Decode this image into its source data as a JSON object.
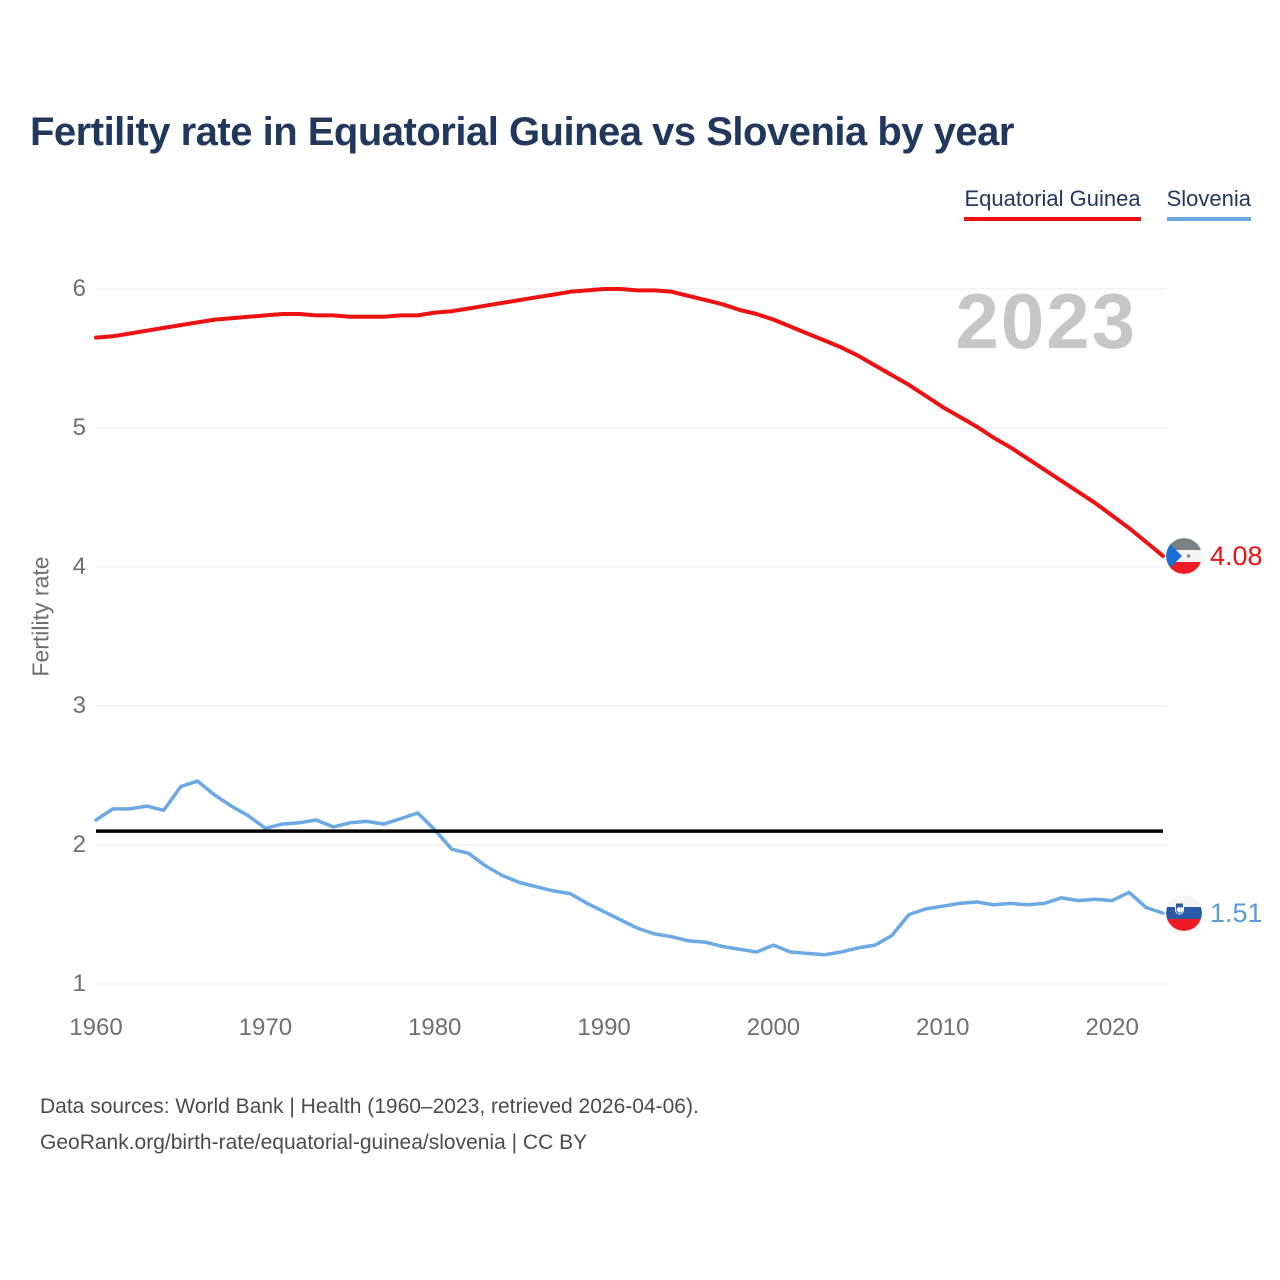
{
  "title": "Fertility rate in Equatorial Guinea vs Slovenia by year",
  "legend": {
    "items": [
      {
        "label": "Equatorial Guinea",
        "color": "#ee1111"
      },
      {
        "label": "Slovenia",
        "color": "#6ca9e4"
      }
    ]
  },
  "watermark": "2023",
  "end_labels": [
    {
      "series": "Equatorial Guinea",
      "value": "4.08",
      "color": "#ee1111",
      "flag": "equatorial-guinea"
    },
    {
      "series": "Slovenia",
      "value": "1.51",
      "color": "#5b9bd9",
      "flag": "slovenia"
    }
  ],
  "footer": {
    "line1": "Data sources: World Bank | Health (1960–2023, retrieved 2026-04-06).",
    "line2": "GeoRank.org/birth-rate/equatorial-guinea/slovenia | CC BY"
  },
  "chart_data": {
    "type": "line",
    "title": "Fertility rate in Equatorial Guinea vs Slovenia by year",
    "xlabel": "",
    "ylabel": "Fertility rate",
    "ylim": [
      1,
      6
    ],
    "y_ticks": [
      1,
      2,
      3,
      4,
      5,
      6
    ],
    "x_ticks": [
      1960,
      1970,
      1980,
      1990,
      2000,
      2010,
      2020
    ],
    "grid": "horizontal",
    "legend_position": "top-right",
    "reference_line": {
      "value": 2.1,
      "color": "#000000",
      "meaning": "replacement fertility"
    },
    "x": [
      1960,
      1961,
      1962,
      1963,
      1964,
      1965,
      1966,
      1967,
      1968,
      1969,
      1970,
      1971,
      1972,
      1973,
      1974,
      1975,
      1976,
      1977,
      1978,
      1979,
      1980,
      1981,
      1982,
      1983,
      1984,
      1985,
      1986,
      1987,
      1988,
      1989,
      1990,
      1991,
      1992,
      1993,
      1994,
      1995,
      1996,
      1997,
      1998,
      1999,
      2000,
      2001,
      2002,
      2003,
      2004,
      2005,
      2006,
      2007,
      2008,
      2009,
      2010,
      2011,
      2012,
      2013,
      2014,
      2015,
      2016,
      2017,
      2018,
      2019,
      2020,
      2021,
      2022,
      2023
    ],
    "series": [
      {
        "name": "Equatorial Guinea",
        "color": "#ee1111",
        "final_value": 4.08,
        "values": [
          5.65,
          5.66,
          5.68,
          5.7,
          5.72,
          5.74,
          5.76,
          5.78,
          5.79,
          5.8,
          5.81,
          5.82,
          5.82,
          5.81,
          5.81,
          5.8,
          5.8,
          5.8,
          5.81,
          5.81,
          5.83,
          5.84,
          5.86,
          5.88,
          5.9,
          5.92,
          5.94,
          5.96,
          5.98,
          5.99,
          6.0,
          6.0,
          5.99,
          5.99,
          5.98,
          5.95,
          5.92,
          5.89,
          5.85,
          5.82,
          5.78,
          5.73,
          5.68,
          5.63,
          5.58,
          5.52,
          5.45,
          5.38,
          5.31,
          5.23,
          5.15,
          5.08,
          5.01,
          4.93,
          4.86,
          4.78,
          4.7,
          4.62,
          4.54,
          4.46,
          4.37,
          4.28,
          4.18,
          4.08
        ]
      },
      {
        "name": "Slovenia",
        "color": "#6ca9e4",
        "final_value": 1.51,
        "values": [
          2.18,
          2.26,
          2.26,
          2.28,
          2.25,
          2.42,
          2.46,
          2.36,
          2.28,
          2.21,
          2.12,
          2.15,
          2.16,
          2.18,
          2.13,
          2.16,
          2.17,
          2.15,
          2.19,
          2.23,
          2.11,
          1.97,
          1.94,
          1.85,
          1.78,
          1.73,
          1.7,
          1.67,
          1.65,
          1.58,
          1.52,
          1.46,
          1.4,
          1.36,
          1.34,
          1.31,
          1.3,
          1.27,
          1.25,
          1.23,
          1.28,
          1.23,
          1.22,
          1.21,
          1.23,
          1.26,
          1.28,
          1.35,
          1.5,
          1.54,
          1.56,
          1.58,
          1.59,
          1.57,
          1.58,
          1.57,
          1.58,
          1.62,
          1.6,
          1.61,
          1.6,
          1.66,
          1.55,
          1.51
        ]
      }
    ]
  }
}
